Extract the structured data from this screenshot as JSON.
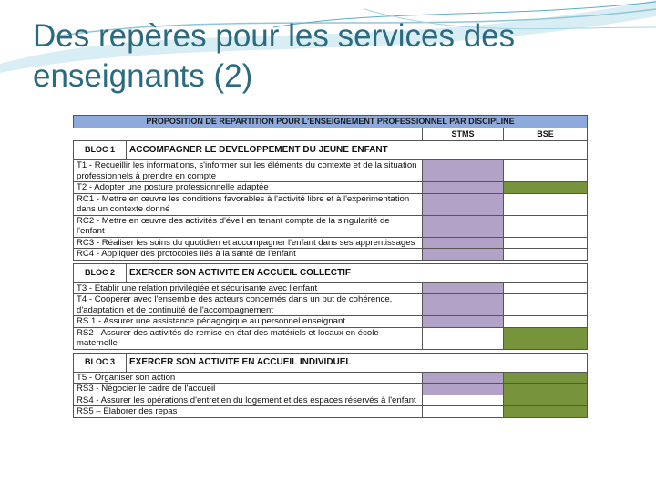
{
  "title": {
    "line1": "Des repères pour les services des",
    "line2": "enseignants (2)"
  },
  "table": {
    "header": "PROPOSITION DE REPARTITION POUR L'ENSEIGNEMENT PROFESSIONNEL PAR DISCIPLINE",
    "columns": [
      "STMS",
      "BSE"
    ],
    "colors": {
      "purple": "#b3a2c7",
      "green": "#77933c",
      "header": "#8ea9db"
    },
    "blocs": [
      {
        "label": "BLOC 1",
        "title": "ACCOMPAGNER LE DEVELOPPEMENT DU JEUNE ENFANT",
        "rows": [
          {
            "text": "T1 - Recueillir les informations, s'informer sur les éléments du contexte et de la situation professionnels à prendre en compte",
            "stms": "purple",
            "bse": "white"
          },
          {
            "text": "T2 - Adopter une posture professionnelle adaptée",
            "stms": "purple",
            "bse": "green"
          },
          {
            "text": "RC1 - Mettre en œuvre les conditions favorables à l'activité libre et à l'expérimentation dans un contexte donné",
            "stms": "purple",
            "bse": "white"
          },
          {
            "text": "RC2 - Mettre en œuvre des activités d'éveil en tenant compte de la singularité de l'enfant",
            "stms": "purple",
            "bse": "white"
          },
          {
            "text": "RC3 - Réaliser les soins du quotidien et accompagner l'enfant dans ses apprentissages",
            "stms": "purple",
            "bse": "white"
          },
          {
            "text": "RC4 - Appliquer des protocoles liés à la santé de l'enfant",
            "stms": "purple",
            "bse": "white"
          }
        ]
      },
      {
        "label": "BLOC 2",
        "title": "EXERCER SON ACTIVITE EN ACCUEIL COLLECTIF",
        "rows": [
          {
            "text": "T3 - Etablir une relation privilégiée et sécurisante avec l'enfant",
            "stms": "purple",
            "bse": "white"
          },
          {
            "text": "T4 - Coopérer avec l'ensemble des acteurs concernés dans un but de cohérence, d'adaptation et de continuité de l'accompagnement",
            "stms": "purple",
            "bse": "white"
          },
          {
            "text": "RS 1 - Assurer une assistance pédagogique au personnel enseignant",
            "stms": "purple",
            "bse": "white"
          },
          {
            "text": "RS2 - Assurer des activités de remise en état des matériels et locaux en école maternelle",
            "stms": "white",
            "bse": "green"
          }
        ]
      },
      {
        "label": "BLOC 3",
        "title": "EXERCER SON ACTIVITE EN ACCUEIL INDIVIDUEL",
        "rows": [
          {
            "text": "T5 - Organiser son action",
            "stms": "purple",
            "bse": "green"
          },
          {
            "text": "RS3 - Négocier le cadre de l'accueil",
            "stms": "purple",
            "bse": "green"
          },
          {
            "text": "RS4 - Assurer les opérations d'entretien du logement et des espaces réservés à l'enfant",
            "stms": "white",
            "bse": "green"
          },
          {
            "text": "RS5 – Elaborer des repas",
            "stms": "white",
            "bse": "green"
          }
        ]
      }
    ]
  }
}
